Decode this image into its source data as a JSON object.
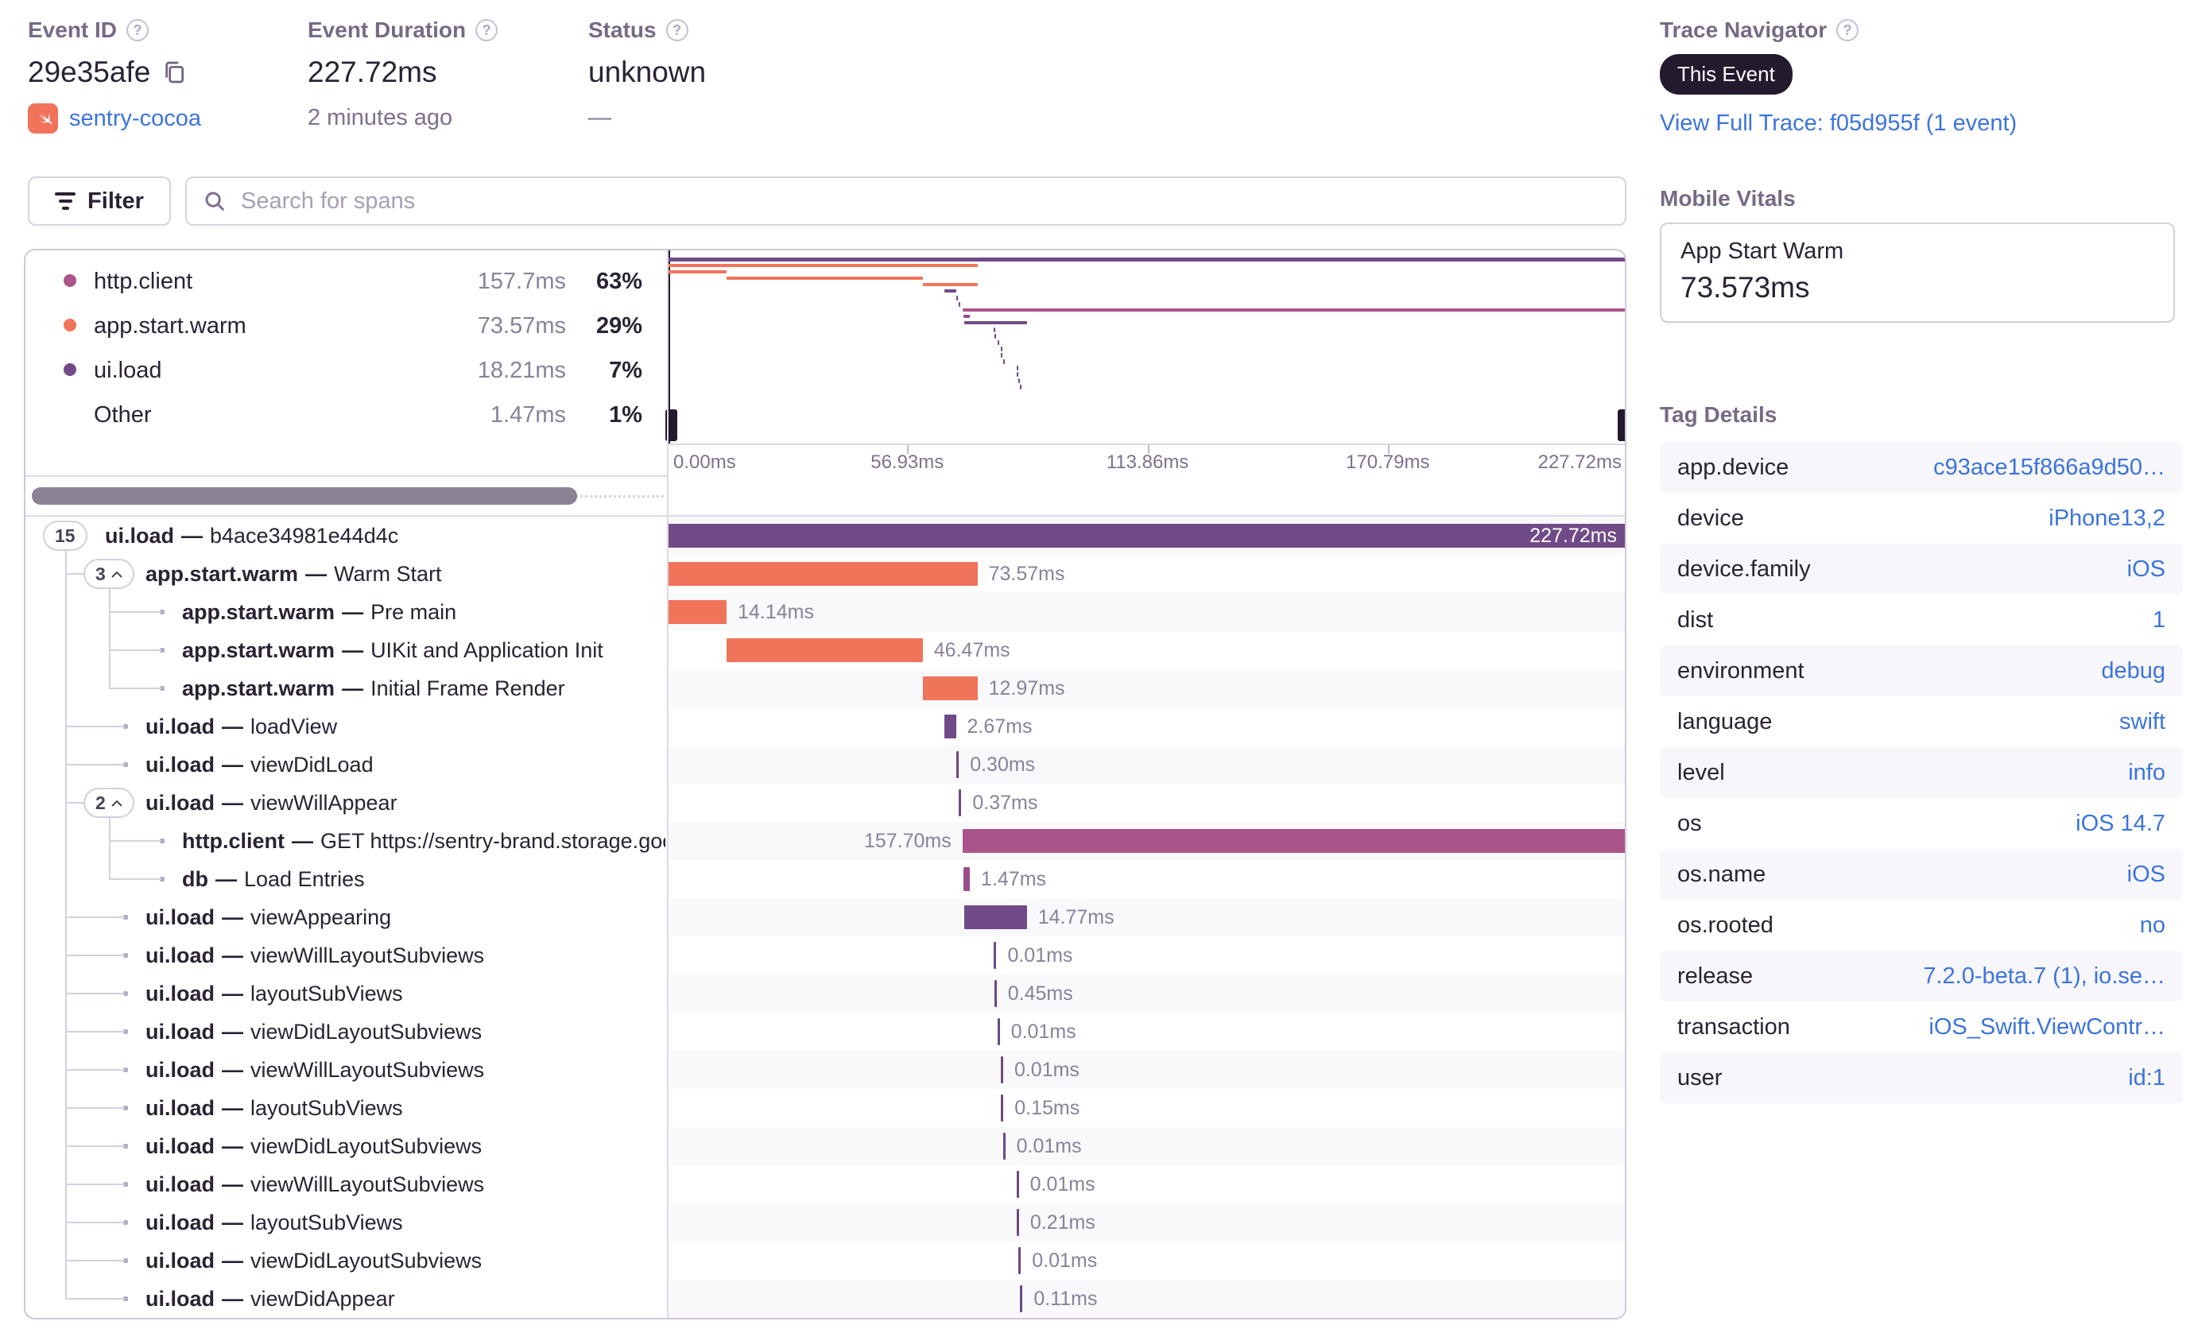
{
  "header": {
    "event_id": {
      "label": "Event ID",
      "value": "29e35afe",
      "project": "sentry-cocoa"
    },
    "event_duration": {
      "label": "Event Duration",
      "value": "227.72ms",
      "ago": "2 minutes ago"
    },
    "status": {
      "label": "Status",
      "value": "unknown",
      "sub": "—"
    },
    "trace_navigator": {
      "label": "Trace Navigator",
      "badge": "This Event",
      "link": "View Full Trace: f05d955f (1 event)"
    }
  },
  "toolbar": {
    "filter_label": "Filter",
    "search_placeholder": "Search for spans"
  },
  "legend": {
    "rows": [
      {
        "op": "http.client",
        "duration": "157.7ms",
        "pct": "63%",
        "color": "maroon"
      },
      {
        "op": "app.start.warm",
        "duration": "73.57ms",
        "pct": "29%",
        "color": "orange"
      },
      {
        "op": "ui.load",
        "duration": "18.21ms",
        "pct": "7%",
        "color": "purple"
      },
      {
        "op": "Other",
        "duration": "1.47ms",
        "pct": "1%",
        "color": null
      }
    ]
  },
  "spans": {
    "total_ms": 227.72,
    "axis_labels": [
      "0.00ms",
      "56.93ms",
      "113.86ms",
      "170.79ms",
      "227.72ms"
    ],
    "colors": {
      "purple": "#714B88",
      "orange": "#F0745A",
      "maroon": "#AA5589",
      "db": "#9A4D88",
      "hair": "#6F4787"
    },
    "groups": [
      {
        "from": 1,
        "to": 21
      },
      {
        "from": 2,
        "to": 5
      },
      {
        "from": 8,
        "to": 10
      }
    ],
    "rows": [
      {
        "badge": "15",
        "caret": false,
        "indent": 0,
        "op": "ui.load",
        "desc": "b4ace34981e44d4c",
        "start": 0,
        "dur": 227.72,
        "label": "227.72ms",
        "color": "purple",
        "pos": "in"
      },
      {
        "badge": "3",
        "caret": true,
        "indent": 1,
        "op": "app.start.warm",
        "desc": "Warm Start",
        "start": 0,
        "dur": 73.57,
        "label": "73.57ms",
        "color": "orange",
        "pos": "right"
      },
      {
        "indent": 2,
        "op": "app.start.warm",
        "desc": "Pre main",
        "start": 0,
        "dur": 14.14,
        "label": "14.14ms",
        "color": "orange",
        "pos": "right"
      },
      {
        "indent": 2,
        "op": "app.start.warm",
        "desc": "UIKit and Application Init",
        "start": 14.14,
        "dur": 46.47,
        "label": "46.47ms",
        "color": "orange",
        "pos": "right"
      },
      {
        "indent": 2,
        "op": "app.start.warm",
        "desc": "Initial Frame Render",
        "start": 60.61,
        "dur": 12.97,
        "label": "12.97ms",
        "color": "orange",
        "pos": "right"
      },
      {
        "indent": 1,
        "op": "ui.load",
        "desc": "loadView",
        "start": 65.8,
        "dur": 2.67,
        "label": "2.67ms",
        "color": "purple",
        "pos": "right"
      },
      {
        "indent": 1,
        "op": "ui.load",
        "desc": "viewDidLoad",
        "start": 68.6,
        "dur": 0.3,
        "label": "0.30ms",
        "color": "hair",
        "pos": "right"
      },
      {
        "badge": "2",
        "caret": true,
        "indent": 1,
        "op": "ui.load",
        "desc": "viewWillAppear",
        "start": 69.2,
        "dur": 0.37,
        "label": "0.37ms",
        "color": "hair",
        "pos": "right"
      },
      {
        "indent": 2,
        "op": "http.client",
        "desc": "GET https://sentry-brand.storage.googleap",
        "start": 70.02,
        "dur": 157.7,
        "label": "157.70ms",
        "color": "maroon",
        "pos": "left"
      },
      {
        "indent": 2,
        "op": "db",
        "desc": "Load Entries",
        "start": 70.3,
        "dur": 1.47,
        "label": "1.47ms",
        "color": "db",
        "pos": "right"
      },
      {
        "indent": 1,
        "op": "ui.load",
        "desc": "viewAppearing",
        "start": 70.5,
        "dur": 14.77,
        "label": "14.77ms",
        "color": "purple",
        "pos": "right"
      },
      {
        "indent": 1,
        "op": "ui.load",
        "desc": "viewWillLayoutSubviews",
        "start": 77.5,
        "dur": 0.01,
        "label": "0.01ms",
        "color": "hair",
        "pos": "right"
      },
      {
        "indent": 1,
        "op": "ui.load",
        "desc": "layoutSubViews",
        "start": 77.55,
        "dur": 0.45,
        "label": "0.45ms",
        "color": "hair",
        "pos": "right"
      },
      {
        "indent": 1,
        "op": "ui.load",
        "desc": "viewDidLayoutSubviews",
        "start": 78.3,
        "dur": 0.01,
        "label": "0.01ms",
        "color": "hair",
        "pos": "right"
      },
      {
        "indent": 1,
        "op": "ui.load",
        "desc": "viewWillLayoutSubviews",
        "start": 79.1,
        "dur": 0.01,
        "label": "0.01ms",
        "color": "hair",
        "pos": "right"
      },
      {
        "indent": 1,
        "op": "ui.load",
        "desc": "layoutSubViews",
        "start": 79.15,
        "dur": 0.15,
        "label": "0.15ms",
        "color": "hair",
        "pos": "right"
      },
      {
        "indent": 1,
        "op": "ui.load",
        "desc": "viewDidLayoutSubviews",
        "start": 79.6,
        "dur": 0.01,
        "label": "0.01ms",
        "color": "hair",
        "pos": "right"
      },
      {
        "indent": 1,
        "op": "ui.load",
        "desc": "viewWillLayoutSubviews",
        "start": 82.8,
        "dur": 0.01,
        "label": "0.01ms",
        "color": "hair",
        "pos": "right"
      },
      {
        "indent": 1,
        "op": "ui.load",
        "desc": "layoutSubViews",
        "start": 82.85,
        "dur": 0.21,
        "label": "0.21ms",
        "color": "hair",
        "pos": "right"
      },
      {
        "indent": 1,
        "op": "ui.load",
        "desc": "viewDidLayoutSubviews",
        "start": 83.3,
        "dur": 0.01,
        "label": "0.01ms",
        "color": "hair",
        "pos": "right"
      },
      {
        "indent": 1,
        "op": "ui.load",
        "desc": "viewDidAppear",
        "start": 83.7,
        "dur": 0.11,
        "label": "0.11ms",
        "color": "hair",
        "pos": "right"
      }
    ]
  },
  "vitals": {
    "title": "Mobile Vitals",
    "card": {
      "name": "App Start Warm",
      "value": "73.573ms"
    }
  },
  "tags": {
    "title": "Tag Details",
    "rows": [
      {
        "key": "app.device",
        "value": "c93ace15f866a9d50…"
      },
      {
        "key": "device",
        "value": "iPhone13,2"
      },
      {
        "key": "device.family",
        "value": "iOS"
      },
      {
        "key": "dist",
        "value": "1"
      },
      {
        "key": "environment",
        "value": "debug"
      },
      {
        "key": "language",
        "value": "swift"
      },
      {
        "key": "level",
        "value": "info"
      },
      {
        "key": "os",
        "value": "iOS 14.7"
      },
      {
        "key": "os.name",
        "value": "iOS"
      },
      {
        "key": "os.rooted",
        "value": "no"
      },
      {
        "key": "release",
        "value": "7.2.0-beta.7 (1), io.se…"
      },
      {
        "key": "transaction",
        "value": "iOS_Swift.ViewContr…"
      },
      {
        "key": "user",
        "value": "id:1"
      }
    ]
  }
}
